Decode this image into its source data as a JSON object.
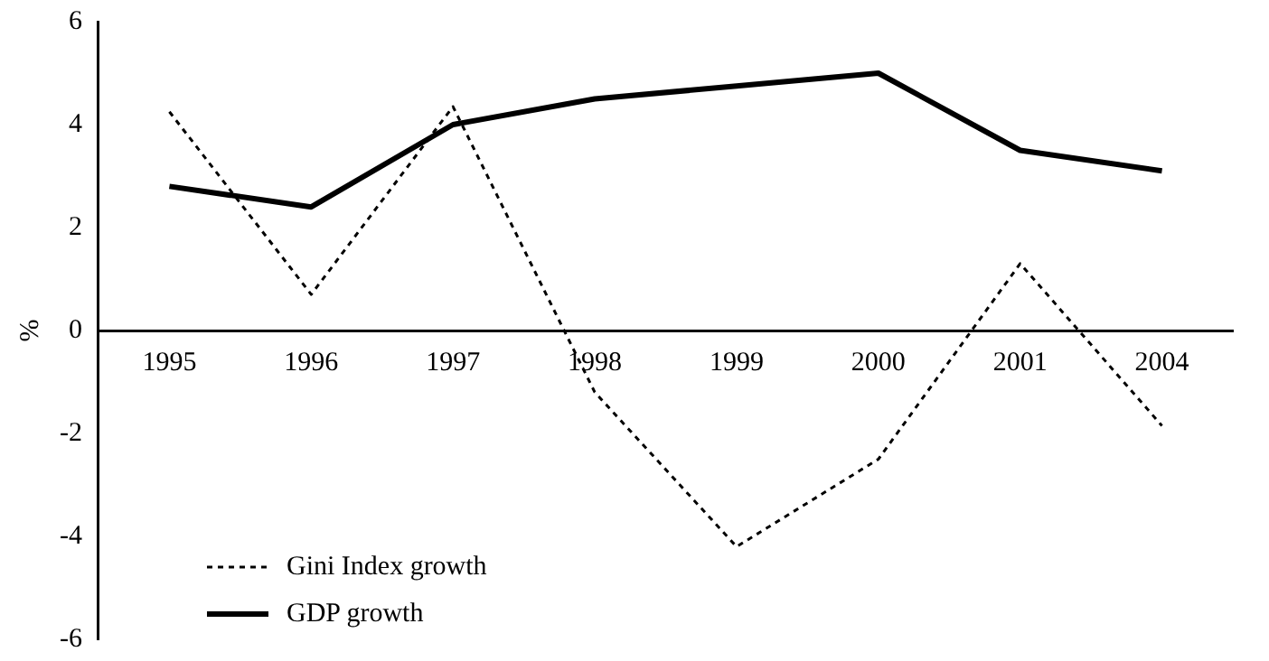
{
  "chart_data": {
    "type": "line",
    "ylabel": "%",
    "categories": [
      "1995",
      "1996",
      "1997",
      "1998",
      "1999",
      "2000",
      "2001",
      "2004"
    ],
    "series": [
      {
        "name": "Gini Index growth",
        "color": "#000000",
        "line_style": "dotted",
        "values": [
          4.25,
          0.7,
          4.35,
          -1.2,
          -4.2,
          -2.5,
          1.3,
          -1.85
        ]
      },
      {
        "name": "GDP growth",
        "color": "#000000",
        "line_style": "solid",
        "values": [
          2.8,
          2.4,
          4.0,
          4.5,
          4.75,
          5.0,
          3.5,
          3.1
        ]
      }
    ],
    "ylim": [
      -6,
      6
    ],
    "yticks": [
      -6,
      -4,
      -2,
      0,
      2,
      4,
      6
    ],
    "grid": false,
    "legend": "bottom left",
    "marker": "none"
  }
}
